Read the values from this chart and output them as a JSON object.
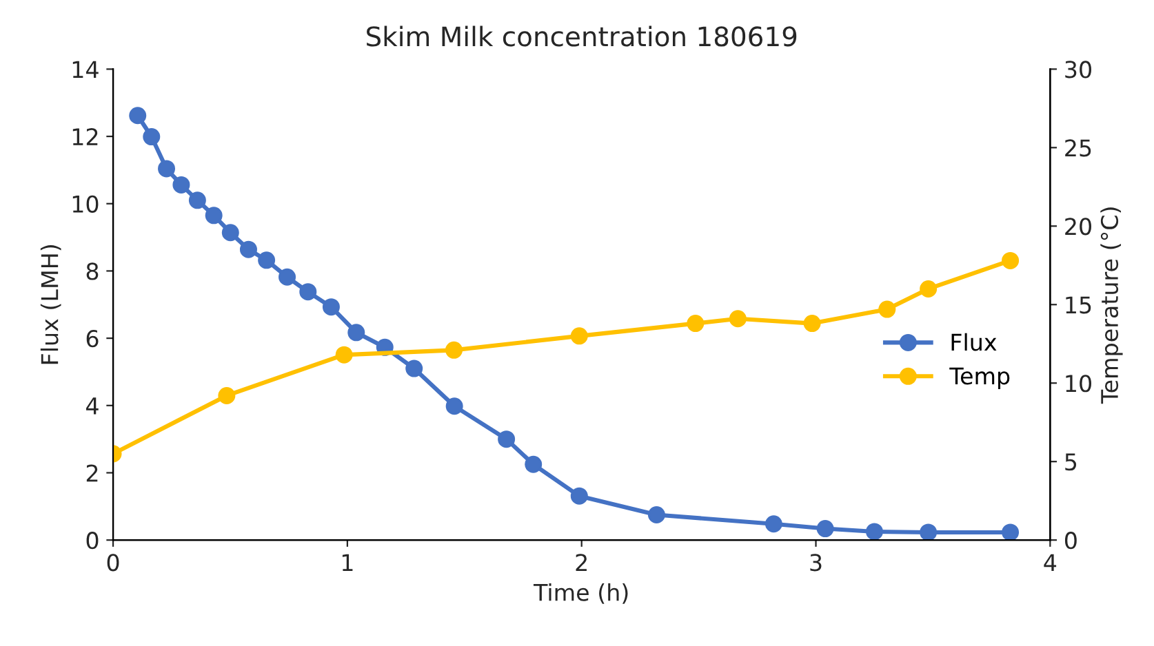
{
  "chart_data": {
    "type": "line",
    "title": "Skim Milk concentration 180619",
    "xlabel": "Time (h)",
    "ylabel": "Flux (LMH)",
    "y2label": "Temperature (°C)",
    "xlim": [
      0,
      4
    ],
    "xticks": [
      0,
      1,
      2,
      3,
      4
    ],
    "ylim": [
      0,
      14
    ],
    "yticks": [
      0,
      2,
      4,
      6,
      8,
      10,
      12,
      14
    ],
    "y2lim": [
      0,
      30
    ],
    "y2ticks": [
      0,
      5,
      10,
      15,
      20,
      25,
      30
    ],
    "grid": false,
    "legend": "right",
    "marker": "circle",
    "line_style": "solid",
    "series": [
      {
        "name": "Flux",
        "color": "#4472c4",
        "x": [
          0.105,
          0.164,
          0.228,
          0.291,
          0.36,
          0.43,
          0.501,
          0.578,
          0.655,
          0.743,
          0.832,
          0.931,
          1.038,
          1.16,
          1.285,
          1.457,
          1.679,
          1.794,
          1.99,
          2.32,
          2.82,
          3.04,
          3.25,
          3.48,
          3.83
        ],
        "values": [
          12.62,
          11.99,
          11.04,
          10.56,
          10.1,
          9.65,
          9.14,
          8.64,
          8.32,
          7.82,
          7.38,
          6.93,
          6.17,
          5.73,
          5.1,
          3.98,
          3.0,
          2.25,
          1.31,
          0.75,
          0.48,
          0.34,
          0.25,
          0.23,
          0.23
        ]
      },
      {
        "name": "Temp",
        "color": "#ffc000",
        "axis": "y2",
        "x": [
          0,
          0.485,
          0.986,
          1.455,
          1.99,
          2.486,
          2.667,
          2.984,
          3.304,
          3.48,
          3.83
        ],
        "values": [
          5.5,
          9.2,
          11.8,
          12.1,
          13.0,
          13.8,
          14.1,
          13.8,
          14.7,
          16.0,
          17.8
        ]
      }
    ]
  }
}
